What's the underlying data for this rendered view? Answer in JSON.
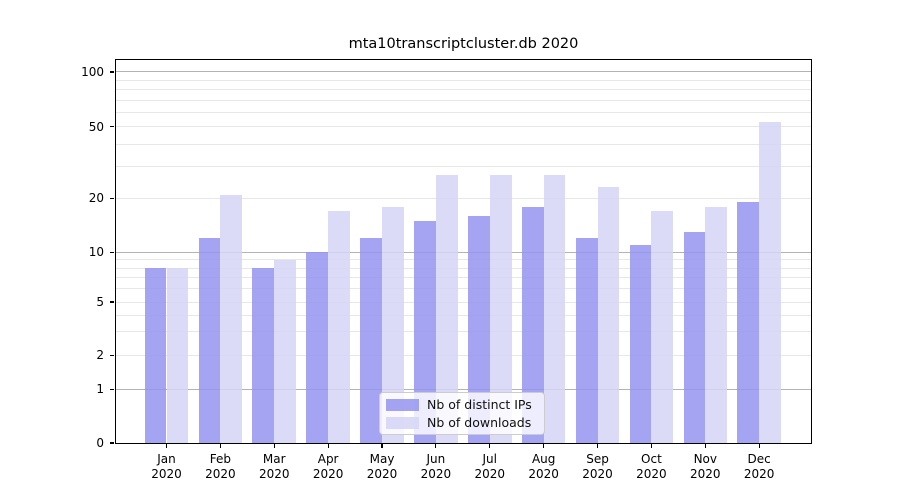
{
  "title": "mta10transcriptcluster.db 2020",
  "chart_data": {
    "type": "bar",
    "title": "mta10transcriptcluster.db 2020",
    "categories": [
      "Jan",
      "Feb",
      "Mar",
      "Apr",
      "May",
      "Jun",
      "Jul",
      "Aug",
      "Sep",
      "Oct",
      "Nov",
      "Dec"
    ],
    "year_label": "2020",
    "series": [
      {
        "name": "Nb of distinct IPs",
        "color": "#9494f0",
        "values": [
          8,
          12,
          8,
          10,
          12,
          15,
          16,
          18,
          12,
          11,
          13,
          19
        ]
      },
      {
        "name": "Nb of downloads",
        "color": "#d5d5f7",
        "values": [
          8,
          21,
          9,
          17,
          18,
          27,
          27,
          27,
          23,
          17,
          18,
          53
        ]
      }
    ],
    "xlabel": "",
    "ylabel": "",
    "yscale": "symlog",
    "ylim": [
      0,
      116
    ],
    "y_ticks": [
      100,
      50,
      20,
      10,
      5,
      2,
      1,
      0
    ],
    "y_tick_labels": [
      "100",
      "50",
      "20",
      "10",
      "5",
      "2",
      "1",
      "0"
    ],
    "y_major_grid": [
      1,
      10,
      100
    ],
    "y_minor_grid": [
      2,
      3,
      4,
      5,
      6,
      7,
      8,
      9,
      20,
      30,
      40,
      50,
      60,
      70,
      80,
      90
    ],
    "grid": true,
    "legend_position": "inside lower center",
    "bar_group_layout": "distinct IPs left of center, downloads right of center"
  }
}
